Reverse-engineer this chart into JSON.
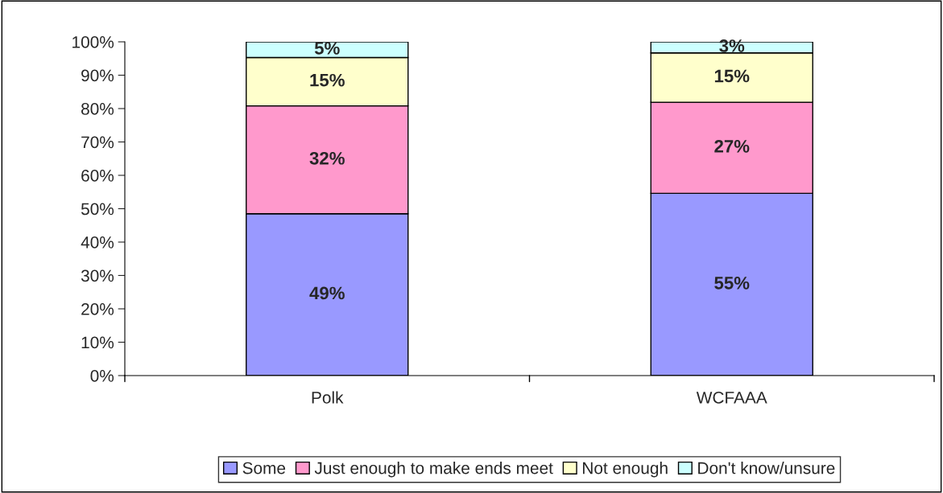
{
  "chart_data": {
    "type": "bar",
    "stacked": true,
    "categories": [
      "Polk",
      "WCFAAA"
    ],
    "series": [
      {
        "name": "Some",
        "color": "#9999ff",
        "values": [
          48.5,
          54.6
        ],
        "value_labels": [
          "49%",
          "55%"
        ]
      },
      {
        "name": "Just enough to make ends meet",
        "color": "#ff99cc",
        "values": [
          32.3,
          27.3
        ],
        "value_labels": [
          "32%",
          "27%"
        ]
      },
      {
        "name": "Not enough",
        "color": "#ffffcc",
        "values": [
          14.5,
          14.8
        ],
        "value_labels": [
          "15%",
          "15%"
        ]
      },
      {
        "name": "Don't know/unsure",
        "color": "#ccffff",
        "values": [
          4.7,
          3.3
        ],
        "value_labels": [
          "5%",
          "3%"
        ]
      }
    ],
    "ylim": [
      0,
      100
    ],
    "yticks": [
      {
        "value": 0,
        "label": "0%"
      },
      {
        "value": 10,
        "label": "10%"
      },
      {
        "value": 20,
        "label": "20%"
      },
      {
        "value": 30,
        "label": "30%"
      },
      {
        "value": 40,
        "label": "40%"
      },
      {
        "value": 50,
        "label": "50%"
      },
      {
        "value": 60,
        "label": "60%"
      },
      {
        "value": 70,
        "label": "70%"
      },
      {
        "value": 80,
        "label": "80%"
      },
      {
        "value": 90,
        "label": "90%"
      },
      {
        "value": 100,
        "label": "100%"
      }
    ],
    "grid": false,
    "legend": "bottom"
  }
}
